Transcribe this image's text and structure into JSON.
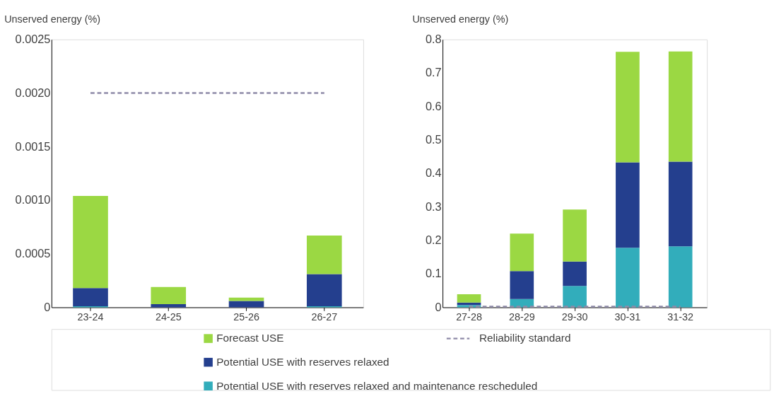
{
  "chart_data": [
    {
      "type": "bar",
      "stacked": true,
      "ylabel": "Unserved energy (%)",
      "categories": [
        "23-24",
        "24-25",
        "25-26",
        "26-27"
      ],
      "series": [
        {
          "name": "Potential USE with reserves relaxed and maintenance rescheduled",
          "color": "#32adbb",
          "values": [
            1e-05,
            0,
            0,
            1e-05
          ]
        },
        {
          "name": "Potential USE with reserves relaxed",
          "color": "#243f8e",
          "values": [
            0.00017,
            3e-05,
            6e-05,
            0.0003
          ]
        },
        {
          "name": "Forecast USE",
          "color": "#9bd843",
          "values": [
            0.00086,
            0.00016,
            3e-05,
            0.00036
          ]
        }
      ],
      "ylim": [
        0,
        0.0025
      ],
      "yticks": [
        0,
        0.0005,
        {
          "value": 0.001,
          "label": "0.0010"
        },
        0.0015,
        {
          "value": 0.002,
          "label": "0.0020"
        },
        0.0025
      ],
      "ref_lines": [
        {
          "axis": "y",
          "value": 0.002,
          "label": "Reliability standard",
          "color": "#8e8aa8",
          "line_style": "dashed"
        }
      ],
      "grid": false,
      "legend": "bottom"
    },
    {
      "type": "bar",
      "stacked": true,
      "ylabel": "Unserved energy (%)",
      "categories": [
        "27-28",
        "28-29",
        "29-30",
        "30-31",
        "31-32"
      ],
      "series": [
        {
          "color": "#32adbb",
          "values": [
            0.007,
            0.025,
            0.064,
            0.178,
            0.182
          ]
        },
        {
          "color": "#243f8e",
          "values": [
            0.007,
            0.083,
            0.073,
            0.255,
            0.253
          ]
        },
        {
          "color": "#9bd843",
          "values": [
            0.025,
            0.112,
            0.155,
            0.33,
            0.329
          ]
        }
      ],
      "ylim": [
        0,
        0.8
      ],
      "yticks": [
        0,
        0.1,
        0.2,
        0.3,
        0.4,
        0.5,
        0.6,
        0.7,
        0.8
      ],
      "ref_lines": [
        {
          "axis": "y",
          "value": 0.002,
          "color": "#8e8aa8",
          "line_style": "dashed"
        }
      ],
      "grid": false
    }
  ]
}
